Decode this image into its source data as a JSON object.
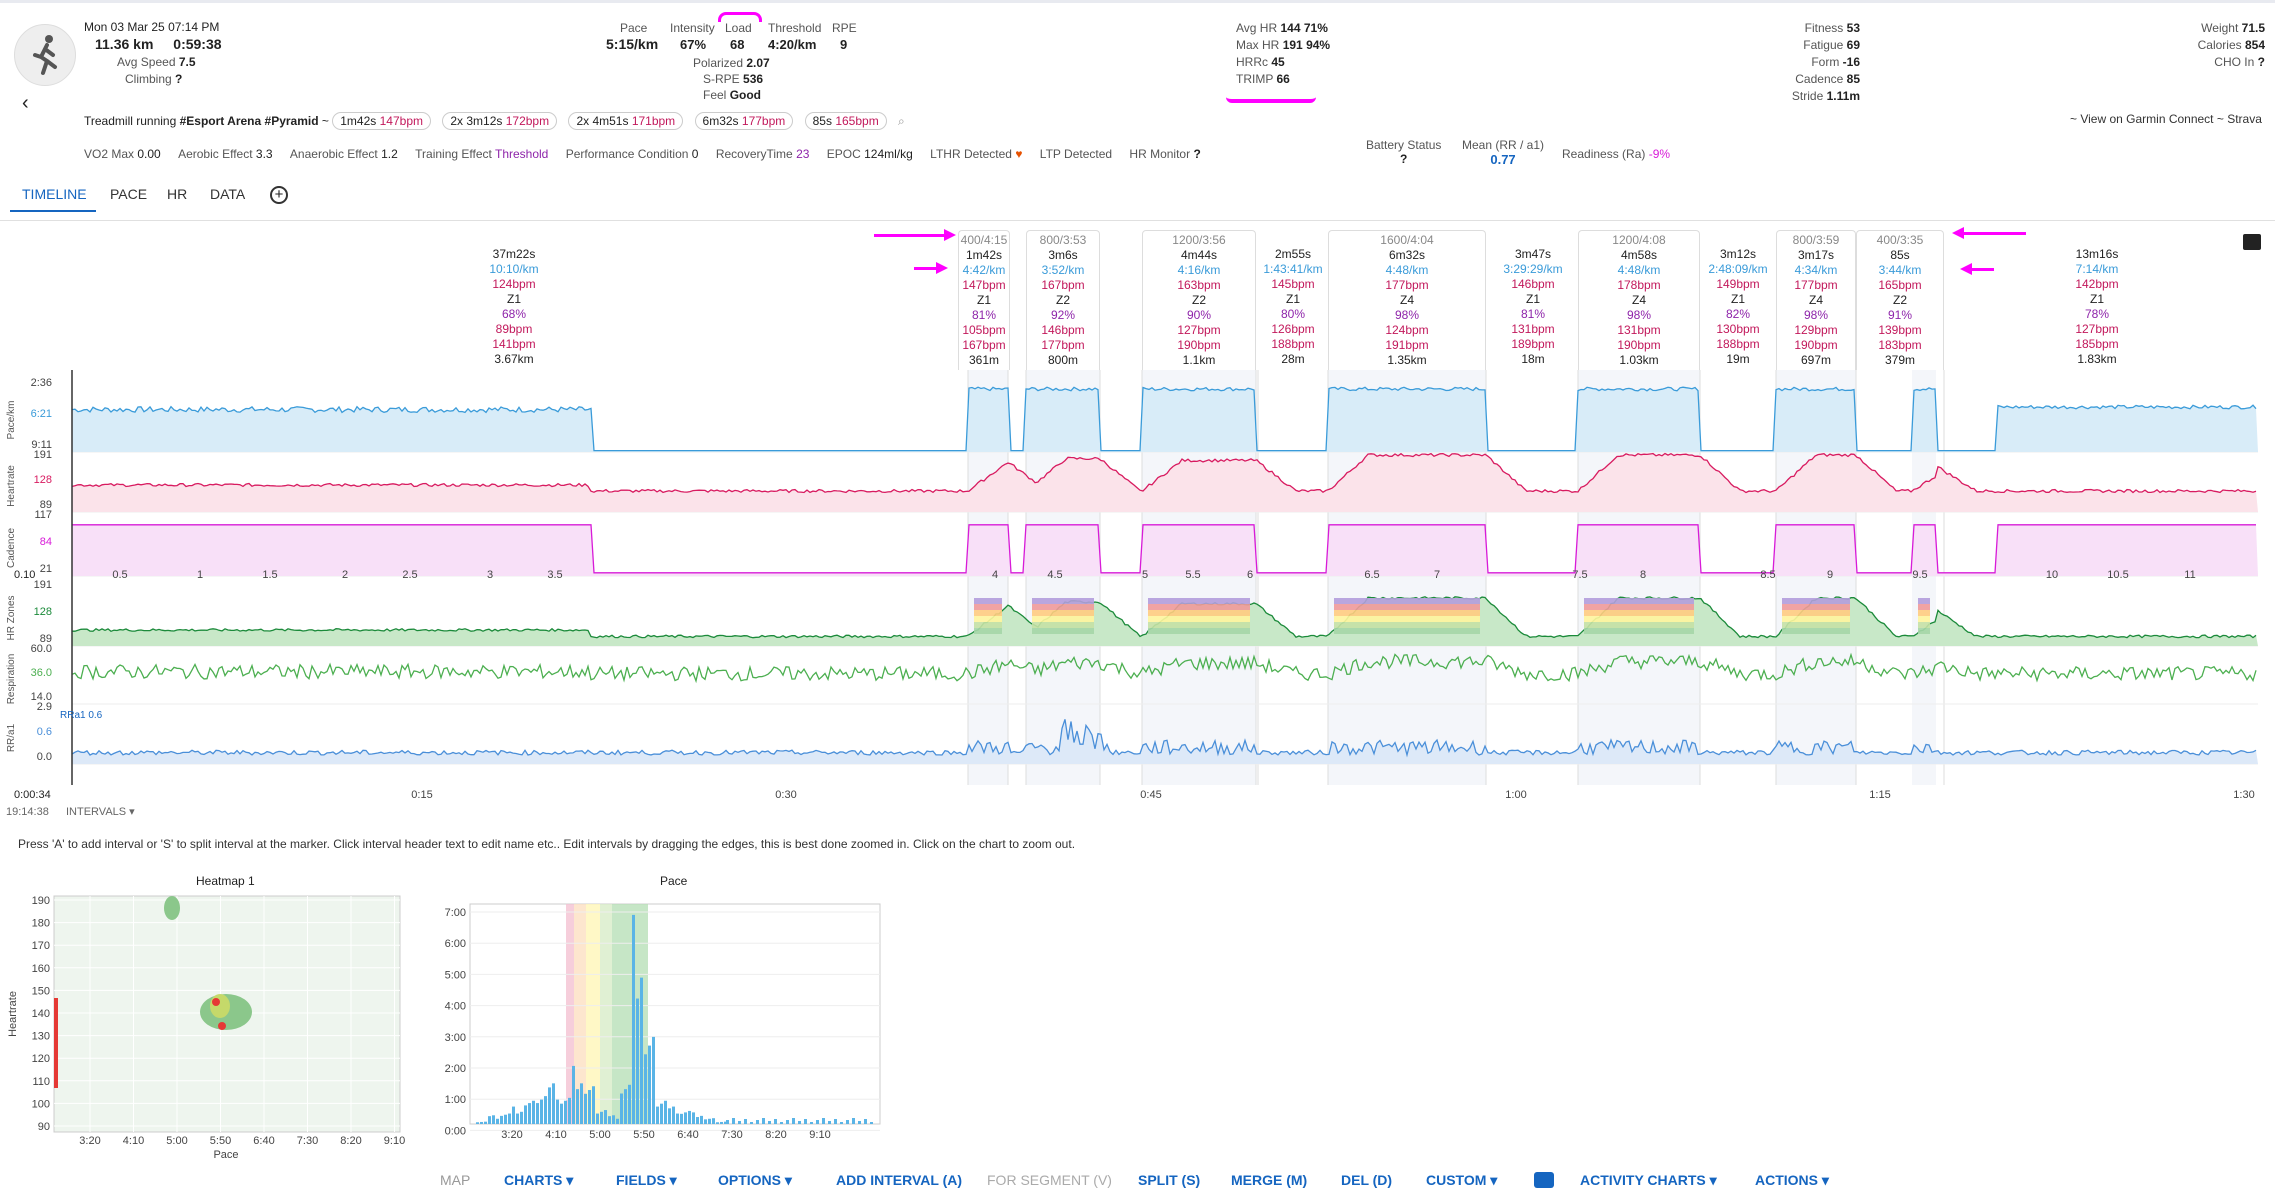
{
  "header": {
    "date": "Mon 03 Mar 25",
    "time": "07:14 PM",
    "distance": "11.36 km",
    "duration": "0:59:38",
    "avg_speed_label": "Avg Speed",
    "avg_speed": "7.5",
    "climbing_label": "Climbing",
    "climbing": "?",
    "pace_label": "Pace",
    "pace": "5:15/km",
    "intensity_label": "Intensity",
    "intensity": "67%",
    "load_label": "Load",
    "load": "68",
    "threshold_label": "Threshold",
    "threshold": "4:20/km",
    "rpe_label": "RPE",
    "rpe": "9",
    "polarized_label": "Polarized",
    "polarized": "2.07",
    "srpe_label": "S-RPE",
    "srpe": "536",
    "feel_label": "Feel",
    "feel": "Good",
    "avg_hr_label": "Avg HR",
    "avg_hr": "144",
    "avg_hr_pct": "71%",
    "max_hr_label": "Max HR",
    "max_hr": "191",
    "max_hr_pct": "94%",
    "hrrc_label": "HRRc",
    "hrrc": "45",
    "trimp_label": "TRIMP",
    "trimp": "66",
    "fitness_label": "Fitness",
    "fitness": "53",
    "fatigue_label": "Fatigue",
    "fatigue": "69",
    "form_label": "Form",
    "form": "-16",
    "cadence_label": "Cadence",
    "cadence": "85",
    "stride_label": "Stride",
    "stride": "1.11m",
    "weight_label": "Weight",
    "weight": "71.5",
    "calories_label": "Calories",
    "calories": "854",
    "cho_label": "CHO In",
    "cho": "?"
  },
  "activity": {
    "type": "Treadmill running",
    "tags": "#Esport Arena #Pyramid",
    "pills": [
      {
        "text": "1m42s",
        "hr": "147bpm"
      },
      {
        "text": "2x 3m12s",
        "hr": "172bpm"
      },
      {
        "text": "2x 4m51s",
        "hr": "171bpm"
      },
      {
        "text": "6m32s",
        "hr": "177bpm"
      },
      {
        "text": "85s",
        "hr": "165bpm"
      }
    ],
    "links": "~ View on Garmin Connect ~ Strava"
  },
  "metrics": {
    "vo2_label": "VO2 Max",
    "vo2": "0.00",
    "aerobic_label": "Aerobic Effect",
    "aerobic": "3.3",
    "anaerobic_label": "Anaerobic Effect",
    "anaerobic": "1.2",
    "te_label": "Training Effect",
    "te": "Threshold",
    "perf_label": "Performance Condition",
    "perf": "0",
    "recovery_label": "RecoveryTime",
    "recovery": "23",
    "epoc_label": "EPOC",
    "epoc": "124ml/kg",
    "lthr_label": "LTHR Detected",
    "ltp_label": "LTP Detected",
    "hrmon_label": "HR Monitor",
    "hrmon": "?",
    "battery_label": "Battery Status",
    "battery": "?",
    "mean_rr_label": "Mean (RR / a1)",
    "mean_rr": "0.77",
    "readiness_label": "Readiness (Ra)",
    "readiness": "-9%"
  },
  "tabs": [
    "TIMELINE",
    "PACE",
    "HR",
    "DATA"
  ],
  "segments": [
    {
      "title": "",
      "dur": "37m22s",
      "pace": "10:10/km",
      "hr": "124bpm",
      "zone": "Z1",
      "pct": "68%",
      "min": "89bpm",
      "max": "141bpm",
      "dist": "3.67km"
    },
    {
      "title": "400/4:15",
      "dur": "1m42s",
      "pace": "4:42/km",
      "hr": "147bpm",
      "zone": "Z1",
      "pct": "81%",
      "min": "105bpm",
      "max": "167bpm",
      "dist": "361m"
    },
    {
      "title": "800/3:53",
      "dur": "3m6s",
      "pace": "3:52/km",
      "hr": "167bpm",
      "zone": "Z2",
      "pct": "92%",
      "min": "146bpm",
      "max": "177bpm",
      "dist": "800m"
    },
    {
      "title": "1200/3:56",
      "dur": "4m44s",
      "pace": "4:16/km",
      "hr": "163bpm",
      "zone": "Z2",
      "pct": "90%",
      "min": "127bpm",
      "max": "190bpm",
      "dist": "1.1km"
    },
    {
      "title": "",
      "dur": "2m55s",
      "pace": "1:43:41/km",
      "hr": "145bpm",
      "zone": "Z1",
      "pct": "80%",
      "min": "126bpm",
      "max": "188bpm",
      "dist": "28m"
    },
    {
      "title": "1600/4:04",
      "dur": "6m32s",
      "pace": "4:48/km",
      "hr": "177bpm",
      "zone": "Z4",
      "pct": "98%",
      "min": "124bpm",
      "max": "191bpm",
      "dist": "1.35km"
    },
    {
      "title": "",
      "dur": "3m47s",
      "pace": "3:29:29/km",
      "hr": "146bpm",
      "zone": "Z1",
      "pct": "81%",
      "min": "131bpm",
      "max": "189bpm",
      "dist": "18m"
    },
    {
      "title": "1200/4:08",
      "dur": "4m58s",
      "pace": "4:48/km",
      "hr": "178bpm",
      "zone": "Z4",
      "pct": "98%",
      "min": "131bpm",
      "max": "190bpm",
      "dist": "1.03km"
    },
    {
      "title": "",
      "dur": "3m12s",
      "pace": "2:48:09/km",
      "hr": "149bpm",
      "zone": "Z1",
      "pct": "82%",
      "min": "130bpm",
      "max": "188bpm",
      "dist": "19m"
    },
    {
      "title": "800/3:59",
      "dur": "3m17s",
      "pace": "4:34/km",
      "hr": "177bpm",
      "zone": "Z4",
      "pct": "98%",
      "min": "129bpm",
      "max": "190bpm",
      "dist": "697m"
    },
    {
      "title": "400/3:35",
      "dur": "85s",
      "pace": "3:44/km",
      "hr": "165bpm",
      "zone": "Z2",
      "pct": "91%",
      "min": "139bpm",
      "max": "183bpm",
      "dist": "379m"
    },
    {
      "title": "",
      "dur": "13m16s",
      "pace": "7:14/km",
      "hr": "142bpm",
      "zone": "Z1",
      "pct": "78%",
      "min": "127bpm",
      "max": "185bpm",
      "dist": "1.83km"
    }
  ],
  "charts": {
    "pace_label": "Pace/km",
    "pace_ticks": [
      "2:36",
      "6:21",
      "9:11"
    ],
    "hr_label": "Heartrate",
    "hr_ticks": [
      "191",
      "128",
      "89"
    ],
    "cad_label": "Cadence",
    "cad_ticks": [
      "117",
      "84",
      "21"
    ],
    "dist_start": "0.10",
    "dist_ticks": [
      "0.5",
      "1",
      "1.5",
      "2",
      "2.5",
      "3",
      "3.5",
      "4",
      "4.5",
      "5",
      "5.5",
      "6",
      "6.5",
      "7",
      "7.5",
      "8",
      "8.5",
      "9",
      "9.5",
      "10",
      "10.5",
      "11"
    ],
    "zones_label": "HR Zones",
    "zones_ticks": [
      "191",
      "128",
      "89"
    ],
    "resp_label": "Respiration",
    "resp_ticks": [
      "60.0",
      "36.0",
      "14.0"
    ],
    "rr_label": "RR/a1",
    "rr_ticks": [
      "2.9",
      "0.6",
      "0.0"
    ],
    "rr_note": "RRa1 0.6",
    "time_start": "0:00:34",
    "time_clock": "19:14:38",
    "time_ticks": [
      "0:15",
      "0:30",
      "0:45",
      "1:00",
      "1:15",
      "1:30"
    ],
    "intervals_label": "INTERVALS"
  },
  "help_text": "Press 'A' to add interval or 'S' to split interval at the marker. Click interval header text to edit name etc.. Edit intervals by dragging the edges, this is best done zoomed in. Click on the chart to zoom out.",
  "chart_data": [
    {
      "type": "heatmap",
      "title": "Heatmap 1",
      "xlabel": "Pace",
      "ylabel": "Heartrate",
      "x_ticks": [
        "3:20",
        "4:10",
        "5:00",
        "5:50",
        "6:40",
        "7:30",
        "8:20",
        "9:10"
      ],
      "y_ticks": [
        "190",
        "180",
        "170",
        "160",
        "150",
        "140",
        "130",
        "120",
        "110",
        "100",
        "90"
      ]
    },
    {
      "type": "bar",
      "title": "Pace",
      "x_ticks": [
        "3:20",
        "4:10",
        "5:00",
        "5:50",
        "6:40",
        "7:30",
        "8:20",
        "9:10"
      ],
      "y_ticks": [
        "7:00",
        "6:00",
        "5:00",
        "4:00",
        "3:00",
        "2:00",
        "1:00",
        "0:00"
      ],
      "bins": [
        "3:20",
        "3:30",
        "3:40",
        "3:50",
        "4:00",
        "4:10",
        "4:20",
        "4:30",
        "4:40",
        "4:50",
        "5:00",
        "5:10",
        "5:20",
        "5:30",
        "5:40",
        "5:50",
        "6:00",
        "6:10",
        "6:20",
        "6:30",
        "6:40"
      ],
      "values_min": [
        0.1,
        0.3,
        0.4,
        0.6,
        0.8,
        1.2,
        1.4,
        1.0,
        2.0,
        1.3,
        0.6,
        0.3,
        1.5,
        7.2,
        3.0,
        1.0,
        0.6,
        0.5,
        0.4,
        0.2,
        0.1
      ]
    }
  ],
  "toolbar": [
    "MAP",
    "CHARTS",
    "FIELDS",
    "OPTIONS",
    "ADD INTERVAL (A)",
    "FOR SEGMENT (V)",
    "SPLIT (S)",
    "MERGE (M)",
    "DEL (D)",
    "CUSTOM",
    "ACTIVITY CHARTS",
    "ACTIONS"
  ],
  "colors": {
    "accent": "#1565c0",
    "hr": "#c2185b",
    "pace": "#3a9bd9",
    "cadence": "#d81bd8",
    "resp": "#4caf50",
    "magenta": "#ff00ff"
  }
}
